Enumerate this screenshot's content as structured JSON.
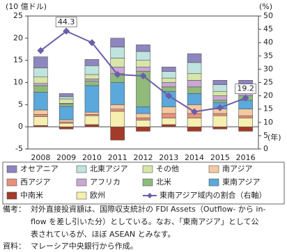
{
  "chart_data": {
    "type": "bar",
    "y_unit": "(10 億ドル)",
    "y2_unit": "(%)",
    "x_unit": "(年)",
    "categories": [
      "2008",
      "2009",
      "2010",
      "2011",
      "2012",
      "2013",
      "2014",
      "2015",
      "2016"
    ],
    "ylim": [
      -5,
      25
    ],
    "yticks": [
      -5,
      0,
      5,
      10,
      15,
      20,
      25
    ],
    "y2lim": [
      0,
      50
    ],
    "y2ticks": [
      0,
      5,
      10,
      15,
      20,
      25,
      30,
      35,
      40,
      45,
      50
    ],
    "series": [
      {
        "name": "中南米",
        "color": "#a33a2a",
        "values": [
          0.3,
          -0.5,
          0.5,
          -3,
          -1,
          0.5,
          -1,
          -0.5,
          -1
        ]
      },
      {
        "name": "欧州",
        "color": "#f5efb0",
        "values": [
          2,
          0.8,
          2,
          3.5,
          1.5,
          1.5,
          2,
          2.5,
          2
        ]
      },
      {
        "name": "西アジア",
        "color": "#e8907a",
        "values": [
          0.5,
          0.3,
          0.3,
          0.5,
          0.5,
          1,
          1,
          0.5,
          0.5
        ]
      },
      {
        "name": "南アジア",
        "color": "#f5c9a0",
        "values": [
          1,
          0.5,
          0.5,
          1,
          1,
          1.5,
          2,
          1,
          1.5
        ]
      },
      {
        "name": "東南アジア",
        "color": "#5aa8dc",
        "values": [
          4,
          3,
          6,
          5,
          1.5,
          3.5,
          2.5,
          1.5,
          2
        ]
      },
      {
        "name": "北米",
        "color": "#8fba7a",
        "values": [
          1.5,
          0.5,
          1,
          2,
          8,
          1,
          1.5,
          0.5,
          1
        ]
      },
      {
        "name": "アフリカ",
        "color": "#c9a8d2",
        "values": [
          0.5,
          0.2,
          0.5,
          1.5,
          1,
          1,
          1.5,
          1,
          0.5
        ]
      },
      {
        "name": "その他",
        "color": "#d7e6a8",
        "values": [
          1.5,
          1,
          1,
          2,
          1.5,
          1,
          1.5,
          1,
          1
        ]
      },
      {
        "name": "北東アジア",
        "color": "#bfe3df",
        "values": [
          2,
          0.5,
          2,
          2.5,
          2,
          1.5,
          2.5,
          1.5,
          1
        ]
      },
      {
        "name": "オセアニア",
        "color": "#8e86bf",
        "values": [
          2.5,
          0.7,
          1.4,
          2,
          1.5,
          1,
          2,
          1,
          1
        ]
      },
      {
        "name": "東南アジア域内の割合（右軸）",
        "color": "#6b5ea8",
        "kind": "line",
        "axis": "y2",
        "values": [
          37,
          44.3,
          40,
          28,
          27.5,
          20,
          14,
          15.5,
          19.2
        ],
        "value_labels": [
          null,
          "44.3",
          null,
          null,
          null,
          null,
          null,
          null,
          "19.2"
        ]
      }
    ],
    "legend_order": [
      9,
      8,
      7,
      3,
      2,
      6,
      5,
      4,
      0,
      1,
      10
    ]
  },
  "notes": {
    "label": "備考：",
    "lines": [
      "対外直接投資額は、国際収支統計の FDI Assets（Outflow- から in-",
      "flow を差し引いた分）としている。なお、「東南アジア」として公",
      "表されているが、ほぼ ASEAN とみなす。"
    ]
  },
  "source": {
    "label": "資料：",
    "text": "マレーシア中央銀行から作成。"
  }
}
